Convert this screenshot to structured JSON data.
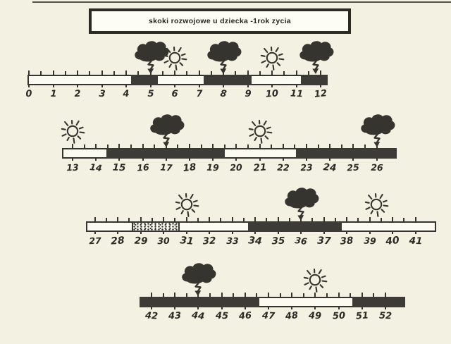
{
  "title": "skoki rozwojowe u dziecka -1rok zycia",
  "colors": {
    "paper": "#f2f1e2",
    "panel": "#fdfdf6",
    "ink": "#36342e",
    "storm_fill": "#3d3b35",
    "bar_fill": "#fbfbf2"
  },
  "chart_data": {
    "type": "timeline",
    "title": "skoki rozwojowe u dziecka -1rok zycia",
    "x_unit": "week",
    "x_range": [
      0,
      52
    ],
    "segment_kinds": [
      "calm",
      "storm",
      "dotted"
    ],
    "rows": [
      {
        "label_start": 0,
        "labels": [
          "0",
          "1",
          "2",
          "3",
          "4",
          "5",
          "6",
          "7",
          "8",
          "9",
          "10",
          "11",
          "12"
        ],
        "axis_from": -0.05,
        "axis_to": 12.3,
        "segments": [
          {
            "from": -0.05,
            "to": 4.2,
            "kind": "calm"
          },
          {
            "from": 4.2,
            "to": 5.3,
            "kind": "storm"
          },
          {
            "from": 5.3,
            "to": 7.2,
            "kind": "calm"
          },
          {
            "from": 7.2,
            "to": 9.15,
            "kind": "storm"
          },
          {
            "from": 9.15,
            "to": 11.2,
            "kind": "calm"
          },
          {
            "from": 11.2,
            "to": 12.3,
            "kind": "storm"
          }
        ],
        "icons": [
          {
            "icon": "storm-cloud-icon",
            "week": 5
          },
          {
            "icon": "sun-icon",
            "week": 6
          },
          {
            "icon": "storm-cloud-icon",
            "week": 8
          },
          {
            "icon": "sun-icon",
            "week": 10
          },
          {
            "icon": "storm-cloud-icon",
            "week": 11.8
          }
        ]
      },
      {
        "label_start": 13,
        "labels": [
          "13",
          "14",
          "15",
          "16",
          "17",
          "18",
          "19",
          "20",
          "21",
          "22",
          "23",
          "24",
          "25",
          "26"
        ],
        "axis_from": 12.55,
        "axis_to": 26.85,
        "segments": [
          {
            "from": 12.55,
            "to": 14.45,
            "kind": "calm"
          },
          {
            "from": 14.45,
            "to": 19.5,
            "kind": "storm"
          },
          {
            "from": 19.5,
            "to": 22.55,
            "kind": "calm"
          },
          {
            "from": 22.55,
            "to": 26.85,
            "kind": "storm"
          }
        ],
        "icons": [
          {
            "icon": "sun-icon",
            "week": 13
          },
          {
            "icon": "storm-cloud-icon",
            "week": 17
          },
          {
            "icon": "sun-icon",
            "week": 21
          },
          {
            "icon": "storm-cloud-icon",
            "week": 26
          }
        ]
      },
      {
        "label_start": 27,
        "labels": [
          "27",
          "28",
          "29",
          "30",
          "31",
          "32",
          "33",
          "34",
          "35",
          "36",
          "37",
          "38",
          "39",
          "40",
          "41"
        ],
        "axis_from": 26.6,
        "axis_to": 41.9,
        "segments": [
          {
            "from": 26.6,
            "to": 28.6,
            "kind": "calm"
          },
          {
            "from": 28.6,
            "to": 30.7,
            "kind": "dotted"
          },
          {
            "from": 30.7,
            "to": 33.7,
            "kind": "calm"
          },
          {
            "from": 33.7,
            "to": 37.8,
            "kind": "storm"
          },
          {
            "from": 37.8,
            "to": 41.9,
            "kind": "calm"
          }
        ],
        "icons": [
          {
            "icon": "sun-icon",
            "week": 31
          },
          {
            "icon": "storm-cloud-icon",
            "week": 36
          },
          {
            "icon": "sun-icon",
            "week": 39.3
          }
        ]
      },
      {
        "label_start": 42,
        "labels": [
          "42",
          "43",
          "44",
          "45",
          "46",
          "47",
          "48",
          "49",
          "50",
          "51",
          "52"
        ],
        "axis_from": 41.5,
        "axis_to": 52.85,
        "segments": [
          {
            "from": 41.5,
            "to": 46.6,
            "kind": "storm"
          },
          {
            "from": 46.6,
            "to": 50.6,
            "kind": "calm"
          },
          {
            "from": 50.6,
            "to": 52.85,
            "kind": "storm"
          }
        ],
        "icons": [
          {
            "icon": "storm-cloud-icon",
            "week": 44
          },
          {
            "icon": "sun-icon",
            "week": 49
          }
        ]
      }
    ]
  }
}
